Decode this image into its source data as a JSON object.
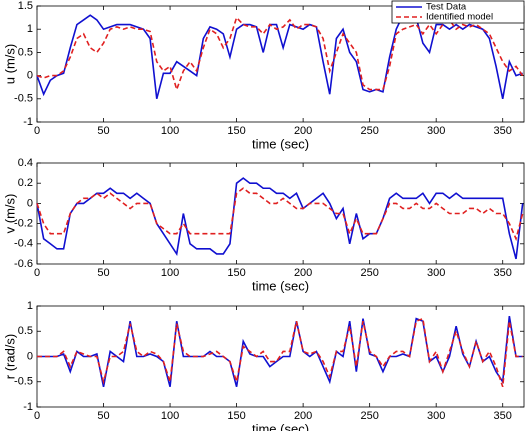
{
  "chart_data": [
    {
      "type": "line",
      "ylabel": "u (m/s)",
      "xlabel": "time (sec)",
      "legend": "upper right",
      "x": [
        0,
        5,
        10,
        15,
        20,
        25,
        30,
        35,
        40,
        45,
        50,
        55,
        60,
        65,
        70,
        75,
        80,
        85,
        90,
        95,
        100,
        105,
        110,
        115,
        120,
        125,
        130,
        135,
        140,
        145,
        150,
        155,
        160,
        165,
        170,
        175,
        180,
        185,
        190,
        195,
        200,
        205,
        210,
        215,
        220,
        225,
        230,
        235,
        240,
        245,
        250,
        255,
        260,
        265,
        270,
        275,
        280,
        285,
        290,
        295,
        300,
        305,
        310,
        315,
        320,
        325,
        330,
        335,
        340,
        345,
        350,
        355,
        360,
        365
      ],
      "xlim": [
        0,
        366
      ],
      "xticks": [
        0,
        50,
        100,
        150,
        200,
        250,
        300,
        350
      ],
      "ylim": [
        -1,
        1.5
      ],
      "yticks": [
        -1,
        -0.5,
        0,
        0.5,
        1,
        1.5
      ],
      "series": [
        {
          "name": "Test Data",
          "color": "#1010d0",
          "dash": false,
          "values": [
            0,
            -0.4,
            -0.1,
            0,
            0.05,
            0.6,
            1.1,
            1.2,
            1.3,
            1.2,
            1.0,
            1.05,
            1.1,
            1.1,
            1.1,
            1.05,
            1.0,
            0.8,
            -0.5,
            0.05,
            0.05,
            0.3,
            0.2,
            0.1,
            0,
            0.8,
            1.05,
            1.0,
            0.9,
            0.4,
            1.0,
            1.1,
            1.1,
            1.05,
            0.5,
            1.1,
            1.1,
            0.6,
            1.1,
            1.05,
            1.0,
            1.1,
            1.05,
            0.3,
            -0.4,
            0.8,
            1.0,
            0.5,
            0.3,
            -0.3,
            -0.35,
            -0.3,
            -0.35,
            0.4,
            1.0,
            1.3,
            1.2,
            1.25,
            0.7,
            0.5,
            1.1,
            1.1,
            1.0,
            1.1,
            1.0,
            1.1,
            1.05,
            1.0,
            0.8,
            0.2,
            -0.5,
            0.3,
            0,
            0.05
          ]
        },
        {
          "name": "Identified model",
          "color": "#e02020",
          "dash": true,
          "values": [
            0,
            -0.05,
            0,
            0,
            0.1,
            0.4,
            0.8,
            0.9,
            0.6,
            0.5,
            0.7,
            1.0,
            1.05,
            1.0,
            1.05,
            1.0,
            1.0,
            0.95,
            0.3,
            0.1,
            0.2,
            -0.3,
            0.1,
            0.3,
            0.1,
            0.6,
            1.0,
            0.9,
            0.6,
            0.8,
            1.25,
            1.1,
            1.05,
            1.05,
            0.9,
            1.1,
            1.0,
            1.05,
            1.2,
            1.0,
            1.1,
            1.1,
            1.05,
            0.8,
            0.1,
            0.5,
            0.9,
            0.7,
            0.5,
            -0.2,
            -0.3,
            -0.3,
            -0.3,
            0.2,
            0.9,
            1.0,
            1.05,
            1.1,
            0.9,
            1.1,
            0.9,
            1.1,
            1.2,
            1.0,
            1.1,
            1.05,
            1.1,
            1.0,
            0.9,
            0.6,
            0.3,
            0.1,
            0.2,
            0
          ]
        }
      ]
    },
    {
      "type": "line",
      "ylabel": "v (m/s)",
      "xlabel": "time (sec)",
      "x": [
        0,
        5,
        10,
        15,
        20,
        25,
        30,
        35,
        40,
        45,
        50,
        55,
        60,
        65,
        70,
        75,
        80,
        85,
        90,
        95,
        100,
        105,
        110,
        115,
        120,
        125,
        130,
        135,
        140,
        145,
        150,
        155,
        160,
        165,
        170,
        175,
        180,
        185,
        190,
        195,
        200,
        205,
        210,
        215,
        220,
        225,
        230,
        235,
        240,
        245,
        250,
        255,
        260,
        265,
        270,
        275,
        280,
        285,
        290,
        295,
        300,
        305,
        310,
        315,
        320,
        325,
        330,
        335,
        340,
        345,
        350,
        355,
        360,
        365
      ],
      "xlim": [
        0,
        366
      ],
      "xticks": [
        0,
        50,
        100,
        150,
        200,
        250,
        300,
        350
      ],
      "ylim": [
        -0.6,
        0.4
      ],
      "yticks": [
        -0.6,
        -0.4,
        -0.2,
        0,
        0.2,
        0.4
      ],
      "series": [
        {
          "color": "#1010d0",
          "dash": false,
          "values": [
            0,
            -0.35,
            -0.4,
            -0.45,
            -0.45,
            -0.1,
            0,
            0,
            0.05,
            0.1,
            0.1,
            0.15,
            0.1,
            0.1,
            0.05,
            0.1,
            0.05,
            0,
            -0.2,
            -0.3,
            -0.4,
            -0.5,
            -0.1,
            -0.4,
            -0.45,
            -0.45,
            -0.45,
            -0.5,
            -0.5,
            -0.4,
            0.2,
            0.25,
            0.2,
            0.2,
            0.15,
            0.15,
            0.1,
            0.1,
            0.05,
            0.1,
            -0.05,
            0,
            0.05,
            0.1,
            0,
            -0.15,
            -0.05,
            -0.4,
            -0.1,
            -0.35,
            -0.3,
            -0.3,
            -0.15,
            0.05,
            0.1,
            0.05,
            0.05,
            0.05,
            0.1,
            0,
            0.1,
            0.1,
            0.05,
            0.1,
            0.05,
            0.05,
            0.05,
            0.05,
            0.05,
            0.05,
            0.05,
            -0.3,
            -0.55,
            0
          ]
        },
        {
          "color": "#e02020",
          "dash": true,
          "values": [
            0,
            -0.2,
            -0.3,
            -0.3,
            -0.3,
            -0.1,
            0,
            0.05,
            0.05,
            0.1,
            0.05,
            0.1,
            0.05,
            0,
            -0.05,
            0,
            0,
            0,
            -0.2,
            -0.25,
            -0.3,
            -0.3,
            -0.2,
            -0.3,
            -0.3,
            -0.3,
            -0.3,
            -0.3,
            -0.3,
            -0.3,
            0.1,
            0.15,
            0.1,
            0.1,
            0.05,
            0,
            0,
            0.05,
            0,
            -0.05,
            -0.05,
            0,
            0,
            0,
            -0.05,
            -0.1,
            -0.1,
            -0.3,
            -0.15,
            -0.3,
            -0.3,
            -0.3,
            -0.15,
            0,
            0,
            -0.05,
            -0.05,
            0,
            -0.05,
            -0.05,
            0,
            -0.05,
            -0.1,
            -0.1,
            -0.1,
            -0.05,
            -0.05,
            -0.1,
            -0.05,
            -0.1,
            -0.1,
            -0.2,
            -0.35,
            -0.1
          ]
        }
      ]
    },
    {
      "type": "line",
      "ylabel": "r (rad/s)",
      "xlabel": "time (sec)",
      "x": [
        0,
        5,
        10,
        15,
        20,
        25,
        30,
        35,
        40,
        45,
        50,
        55,
        60,
        65,
        70,
        75,
        80,
        85,
        90,
        95,
        100,
        105,
        110,
        115,
        120,
        125,
        130,
        135,
        140,
        145,
        150,
        155,
        160,
        165,
        170,
        175,
        180,
        185,
        190,
        195,
        200,
        205,
        210,
        215,
        220,
        225,
        230,
        235,
        240,
        245,
        250,
        255,
        260,
        265,
        270,
        275,
        280,
        285,
        290,
        295,
        300,
        305,
        310,
        315,
        320,
        325,
        330,
        335,
        340,
        345,
        350,
        355,
        360,
        365
      ],
      "xlim": [
        0,
        366
      ],
      "xticks": [
        0,
        50,
        100,
        150,
        200,
        250,
        300,
        350
      ],
      "ylim": [
        -1,
        1
      ],
      "yticks": [
        -1,
        -0.5,
        0,
        0.5,
        1
      ],
      "series": [
        {
          "color": "#1010d0",
          "dash": false,
          "values": [
            0,
            0,
            0,
            0,
            0.05,
            -0.3,
            0.1,
            0,
            0,
            0.05,
            -0.6,
            0.1,
            0,
            -0.1,
            0.7,
            0,
            0,
            0.05,
            0,
            -0.1,
            -0.6,
            0.7,
            0,
            0,
            0,
            0,
            0.1,
            0,
            0,
            -0.1,
            -0.6,
            0.3,
            0.05,
            0,
            0,
            -0.2,
            -0.1,
            0,
            0,
            0.7,
            0.1,
            0,
            0.1,
            -0.2,
            -0.5,
            0.1,
            0,
            0.7,
            -0.3,
            0.75,
            0.05,
            0,
            -0.3,
            0,
            0,
            0.05,
            0,
            0.75,
            0.7,
            -0.1,
            0,
            -0.3,
            0,
            0.6,
            0.05,
            -0.2,
            0.3,
            -0.1,
            0,
            -0.3,
            -0.5,
            0.8,
            0,
            0
          ]
        },
        {
          "color": "#e02020",
          "dash": true,
          "values": [
            0,
            0,
            0,
            0,
            0.1,
            -0.2,
            0.1,
            0.05,
            0,
            0,
            -0.5,
            0,
            0,
            0.1,
            0.65,
            0.1,
            0,
            0.1,
            0.05,
            -0.1,
            -0.5,
            0.65,
            0.1,
            0,
            0,
            0,
            0.05,
            0.1,
            0,
            -0.1,
            -0.5,
            0.2,
            0.1,
            0,
            0.1,
            -0.1,
            -0.1,
            0.1,
            0.1,
            0.7,
            0.1,
            0.05,
            0.1,
            -0.1,
            -0.4,
            0.1,
            0.1,
            0.6,
            -0.2,
            0.7,
            0.1,
            0,
            -0.2,
            0,
            0.1,
            0.1,
            0,
            0.7,
            0.75,
            -0.1,
            0.1,
            -0.3,
            0.1,
            0.5,
            0.1,
            -0.2,
            0.3,
            -0.1,
            0.1,
            -0.2,
            -0.6,
            0.7,
            0,
            0
          ]
        }
      ]
    }
  ]
}
